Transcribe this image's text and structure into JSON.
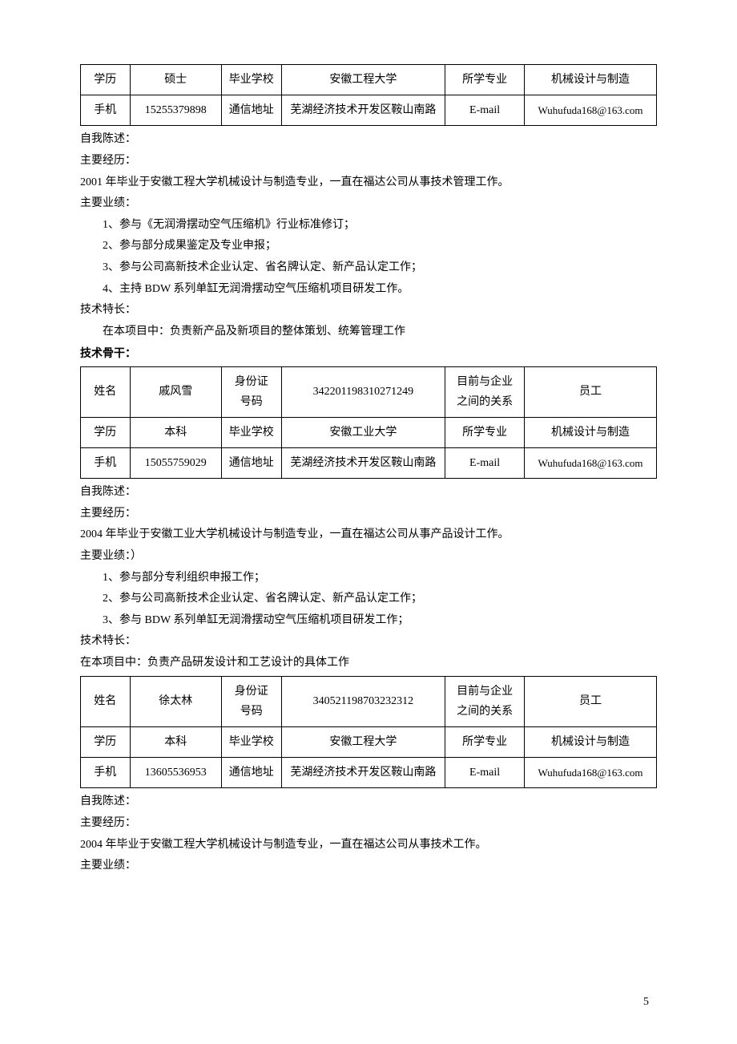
{
  "labels": {
    "education": "学历",
    "school": "毕业学校",
    "major": "所学专业",
    "phone": "手机",
    "address": "通信地址",
    "email": "E-mail",
    "name": "姓名",
    "idLabel1": "身份证",
    "idLabel2": "号码",
    "relation1": "目前与企业",
    "relation2": "之间的关系"
  },
  "section_backbone": "技术骨干：",
  "narrative_labels": {
    "self": "自我陈述：",
    "experience": "主要经历：",
    "achievements": "主要业绩：",
    "achievements_paren": "主要业绩：）",
    "techFeature": "技术特长：",
    "inProject": "在本项目中："
  },
  "person1": {
    "education": "硕士",
    "school": "安徽工程大学",
    "major": "机械设计与制造",
    "phone": "15255379898",
    "address": "芜湖经济技术开发区鞍山南路",
    "email": "Wuhufuda168@163.com",
    "exp_line": "2001 年毕业于安徽工程大学机械设计与制造专业，一直在福达公司从事技术管理工作。",
    "ach1": "1、参与《无润滑摆动空气压缩机》行业标准修订；",
    "ach2": "2、参与部分成果鉴定及专业申报；",
    "ach3": "3、参与公司高新技术企业认定、省名牌认定、新产品认定工作；",
    "ach4": "4、主持 BDW 系列单缸无润滑摆动空气压缩机项目研发工作。",
    "inProject": "负责新产品及新项目的整体策划、统筹管理工作"
  },
  "person2": {
    "name": "戚风雪",
    "id": "342201198310271249",
    "relation": "员工",
    "education": "本科",
    "school": "安徽工业大学",
    "major": "机械设计与制造",
    "phone": "15055759029",
    "address": "芜湖经济技术开发区鞍山南路",
    "email": "Wuhufuda168@163.com",
    "exp_line": "2004 年毕业于安徽工业大学机械设计与制造专业，一直在福达公司从事产品设计工作。",
    "ach1": "1、参与部分专利组织申报工作；",
    "ach2": "2、参与公司高新技术企业认定、省名牌认定、新产品认定工作；",
    "ach3": "3、参与 BDW 系列单缸无润滑摆动空气压缩机项目研发工作；",
    "inProject": "负责产品研发设计和工艺设计的具体工作"
  },
  "person3": {
    "name": "徐太林",
    "id": "340521198703232312",
    "relation": "员工",
    "education": "本科",
    "school": "安徽工程大学",
    "major": "机械设计与制造",
    "phone": "13605536953",
    "address": "芜湖经济技术开发区鞍山南路",
    "email": "Wuhufuda168@163.com",
    "exp_line": "2004 年毕业于安徽工程大学机械设计与制造专业，一直在福达公司从事技术工作。"
  },
  "page_number": "5"
}
